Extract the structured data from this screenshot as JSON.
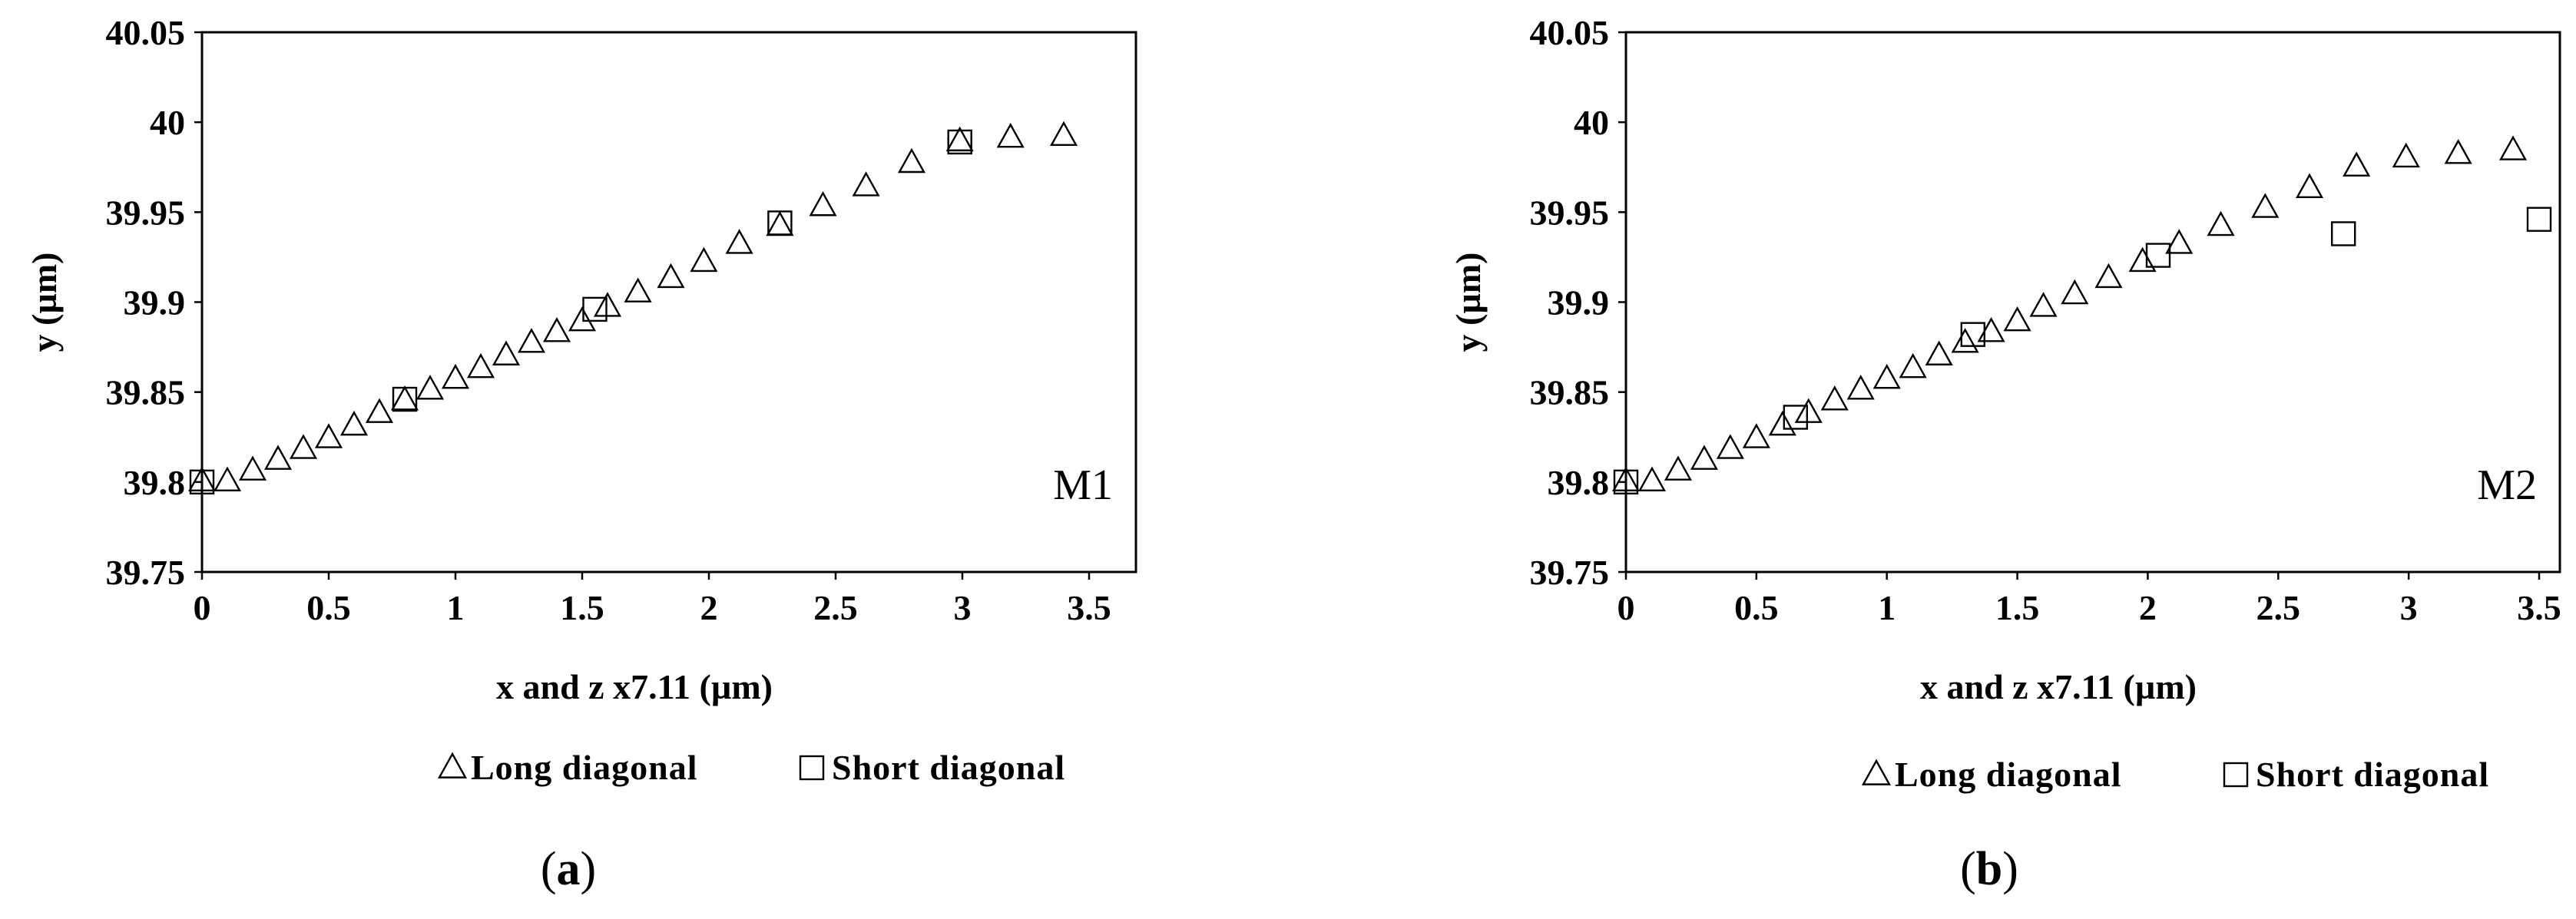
{
  "chart_data": [
    {
      "type": "scatter",
      "panel_label": "M1",
      "caption": {
        "open": "(",
        "letter": "a",
        "close": ")"
      },
      "xlabel": "x and  z x7.11     (µm)",
      "ylabel": "y (µm)",
      "xlim": [
        0,
        3.5
      ],
      "ylim": [
        39.75,
        40.05
      ],
      "xticks": [
        "0",
        "0.5",
        "1",
        "1.5",
        "2",
        "2.5",
        "3",
        "3.5"
      ],
      "yticks": [
        "39.75",
        "39.8",
        "39.85",
        "39.9",
        "39.95",
        "40",
        "40.05"
      ],
      "legend_position": "bottom",
      "grid": false,
      "series": [
        {
          "name": "Long diagonal",
          "marker": "triangle",
          "x": [
            0,
            0.1,
            0.2,
            0.3,
            0.4,
            0.5,
            0.6,
            0.7,
            0.8,
            0.9,
            1.0,
            1.1,
            1.2,
            1.3,
            1.4,
            1.5,
            1.6,
            1.72,
            1.85,
            1.98,
            2.12,
            2.28,
            2.45,
            2.62,
            2.8,
            2.99,
            3.19,
            3.4
          ],
          "y": [
            39.8,
            39.8,
            39.806,
            39.812,
            39.818,
            39.824,
            39.831,
            39.838,
            39.845,
            39.851,
            39.857,
            39.863,
            39.87,
            39.877,
            39.883,
            39.889,
            39.897,
            39.905,
            39.913,
            39.922,
            39.932,
            39.942,
            39.953,
            39.964,
            39.977,
            39.989,
            39.991,
            39.992
          ]
        },
        {
          "name": "Short diagonal",
          "marker": "square",
          "x": [
            0,
            0.8,
            1.55,
            2.28,
            2.99
          ],
          "y": [
            39.8,
            39.846,
            39.896,
            39.944,
            39.989
          ]
        }
      ]
    },
    {
      "type": "scatter",
      "panel_label": "M2",
      "caption": {
        "open": "(",
        "letter": "b",
        "close": ")"
      },
      "xlabel": "x and  z x7.11     (µm)",
      "ylabel": "y (µm)",
      "xlim": [
        0,
        3.5
      ],
      "ylim": [
        39.75,
        40.05
      ],
      "xticks": [
        "0",
        "0.5",
        "1",
        "1.5",
        "2",
        "2.5",
        "3",
        "3.5"
      ],
      "yticks": [
        "39.75",
        "39.8",
        "39.85",
        "39.9",
        "39.95",
        "40",
        "40.05"
      ],
      "legend_position": "bottom",
      "grid": false,
      "series": [
        {
          "name": "Long diagonal",
          "marker": "triangle",
          "x": [
            0,
            0.1,
            0.2,
            0.3,
            0.4,
            0.5,
            0.6,
            0.7,
            0.8,
            0.9,
            1.0,
            1.1,
            1.2,
            1.3,
            1.4,
            1.5,
            1.6,
            1.72,
            1.85,
            1.98,
            2.12,
            2.28,
            2.45,
            2.62,
            2.8,
            2.99,
            3.19,
            3.4
          ],
          "y": [
            39.8,
            39.8,
            39.806,
            39.812,
            39.818,
            39.824,
            39.831,
            39.838,
            39.845,
            39.851,
            39.857,
            39.863,
            39.87,
            39.877,
            39.883,
            39.889,
            39.897,
            39.904,
            39.913,
            39.922,
            39.932,
            39.942,
            39.952,
            39.963,
            39.975,
            39.98,
            39.982,
            39.984
          ]
        },
        {
          "name": "Short diagonal",
          "marker": "square",
          "x": [
            0,
            0.65,
            1.33,
            2.04,
            2.75,
            3.5
          ],
          "y": [
            39.8,
            39.836,
            39.882,
            39.926,
            39.938,
            39.946
          ]
        }
      ]
    }
  ]
}
